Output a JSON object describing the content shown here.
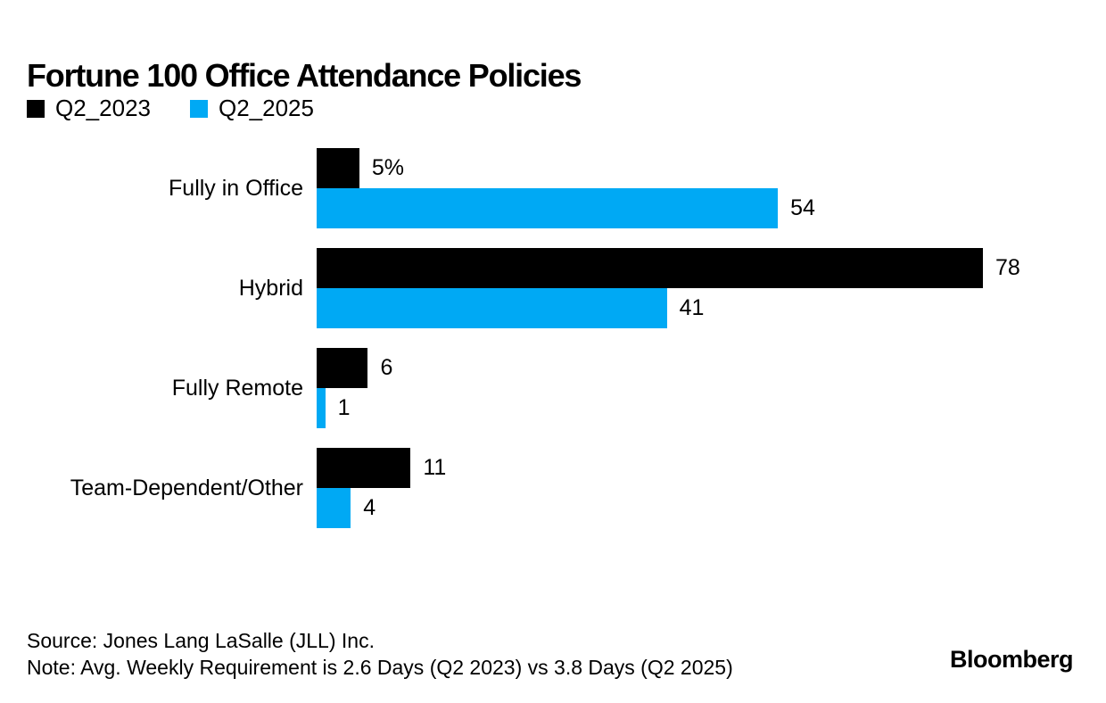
{
  "title": "Fortune 100 Office Attendance Policies",
  "chart_data": {
    "type": "bar",
    "orientation": "horizontal",
    "title": "Fortune 100 Office Attendance Policies",
    "categories": [
      "Fully in Office",
      "Hybrid",
      "Fully Remote",
      "Team-Dependent/Other"
    ],
    "series": [
      {
        "name": "Q2_2023",
        "color": "#000000",
        "values": [
          5,
          78,
          6,
          11
        ],
        "value_labels": [
          "5%",
          "78",
          "6",
          "11"
        ]
      },
      {
        "name": "Q2_2025",
        "color": "#00A9F4",
        "values": [
          54,
          41,
          1,
          4
        ],
        "value_labels": [
          "54",
          "41",
          "1",
          "4"
        ]
      }
    ],
    "xlim": [
      0,
      78
    ],
    "legend_position": "top-left",
    "grid": false,
    "value_labels_visible": true,
    "axis_ticks_visible": false
  },
  "footer": {
    "source": "Source: Jones Lang LaSalle (JLL) Inc.",
    "note": "Note: Avg. Weekly Requirement is 2.6 Days (Q2 2023) vs 3.8 Days (Q2 2025)",
    "brand": "Bloomberg"
  }
}
